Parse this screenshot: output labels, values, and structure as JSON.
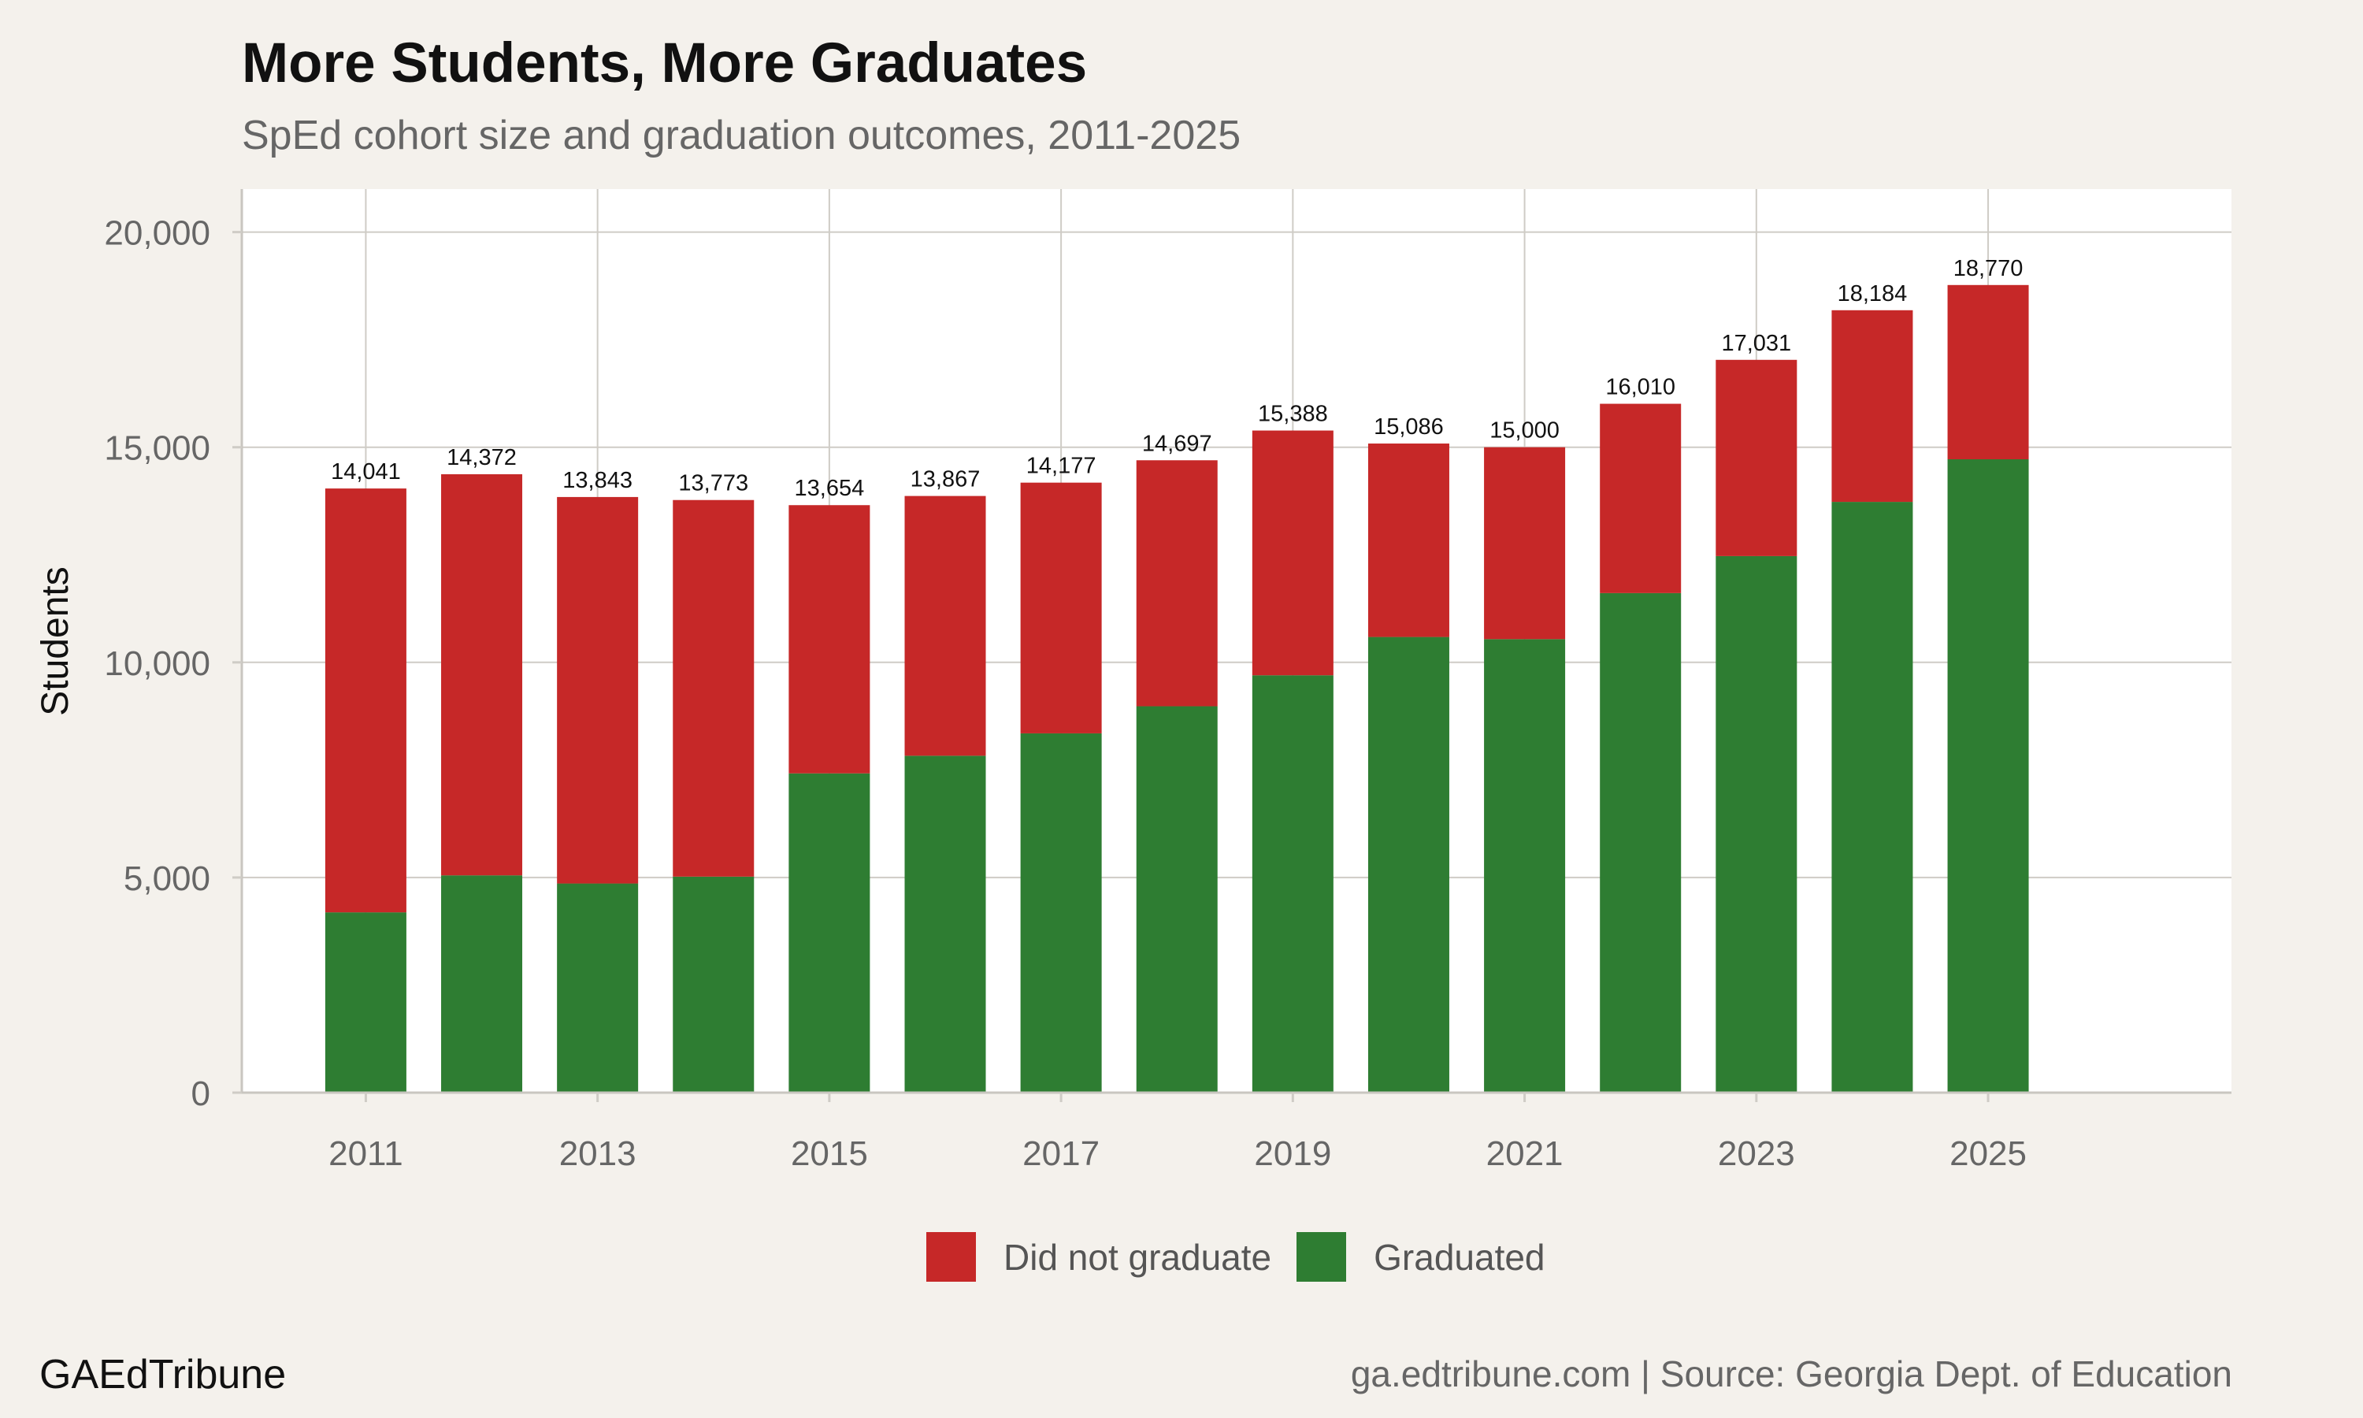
{
  "header": {
    "title": "More Students, More Graduates",
    "subtitle": "SpEd cohort size and graduation outcomes, 2011-2025"
  },
  "footer": {
    "brand": "GAEdTribune",
    "credit": "ga.edtribune.com | Source: Georgia Dept. of Education"
  },
  "colors": {
    "did_not_graduate": "#c62828",
    "graduated": "#2e7d32",
    "plot_background": "#ffffff",
    "page_background": "#f4f1ec",
    "grid": "#cfccc6"
  },
  "chart_data": {
    "type": "bar",
    "stacked": true,
    "ylabel": "Students",
    "ylim": [
      0,
      21000
    ],
    "yticks": [
      0,
      5000,
      10000,
      15000,
      20000
    ],
    "ytick_labels": [
      "0",
      "5,000",
      "10,000",
      "15,000",
      "20,000"
    ],
    "xlim": [
      2009.93,
      2027.1
    ],
    "xticks": [
      2011,
      2013,
      2015,
      2017,
      2019,
      2021,
      2023,
      2025
    ],
    "grid": true,
    "legend_position": "bottom",
    "x": [
      2011,
      2012,
      2013,
      2014,
      2015,
      2016,
      2017,
      2018,
      2019,
      2020,
      2021,
      2022,
      2023,
      2024,
      2025
    ],
    "series": [
      {
        "name": "Graduated",
        "color": "#2e7d32",
        "values": [
          4190,
          5050,
          4860,
          5020,
          7420,
          7830,
          8350,
          8980,
          9700,
          10590,
          10540,
          11610,
          12470,
          13730,
          14720
        ]
      },
      {
        "name": "Did not graduate",
        "color": "#c62828",
        "values": [
          9851,
          9322,
          8983,
          8753,
          6234,
          6037,
          5827,
          5717,
          5688,
          4496,
          4460,
          4400,
          4561,
          4454,
          4050
        ]
      }
    ],
    "totals": [
      14041,
      14372,
      13843,
      13773,
      13654,
      13867,
      14177,
      14697,
      15388,
      15086,
      15000,
      16010,
      17031,
      18184,
      18770
    ],
    "total_labels": [
      "14,041",
      "14,372",
      "13,843",
      "13,773",
      "13,654",
      "13,867",
      "14,177",
      "14,697",
      "15,388",
      "15,086",
      "15,000",
      "16,010",
      "17,031",
      "18,184",
      "18,770"
    ],
    "legend_order": [
      "Did not graduate",
      "Graduated"
    ]
  }
}
